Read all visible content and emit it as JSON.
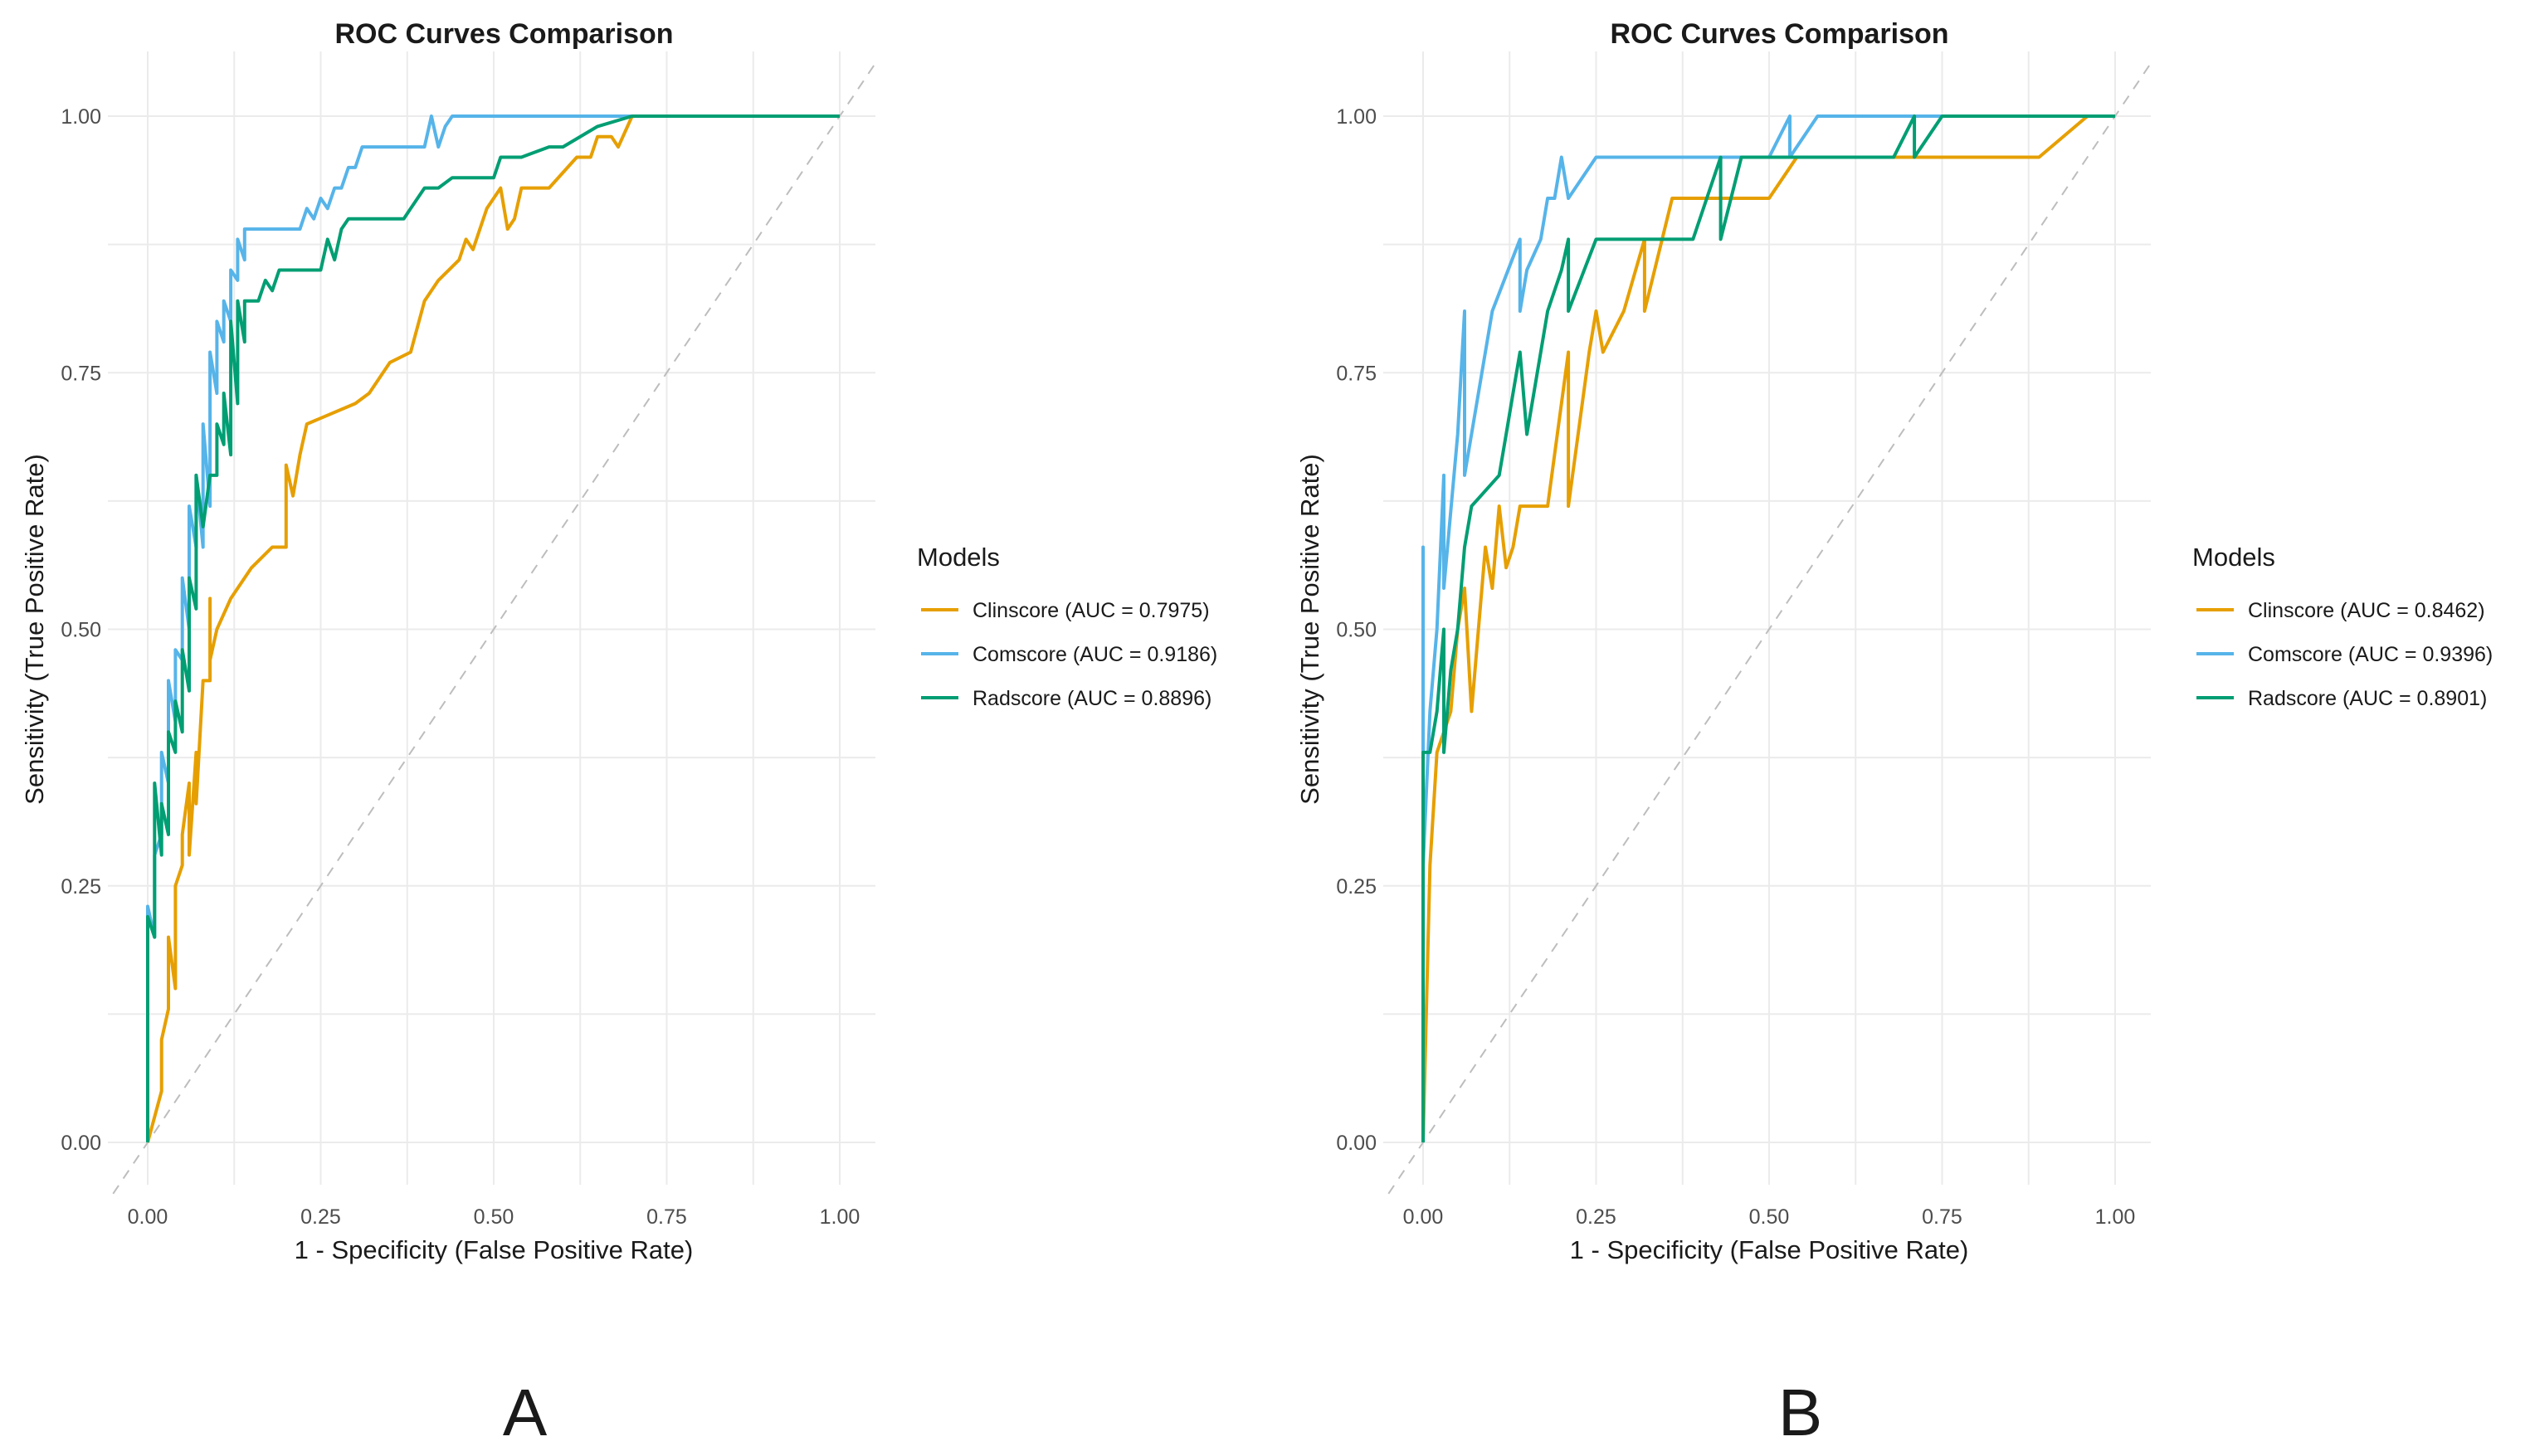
{
  "colors": {
    "Clinscore": "#E69F00",
    "Comscore": "#56B4E9",
    "Radscore": "#009E73",
    "diagonal": "#bdbdbd"
  },
  "chart_data": [
    {
      "panel_label": "A",
      "type": "line",
      "title": "ROC Curves Comparison",
      "xlabel": "1 - Specificity (False Positive Rate)",
      "ylabel": "Sensitivity (True Positive Rate)",
      "xlim": [
        0,
        1
      ],
      "ylim": [
        0,
        1
      ],
      "xticks": [
        "0.00",
        "0.25",
        "0.50",
        "0.75",
        "1.00"
      ],
      "yticks": [
        "0.00",
        "0.25",
        "0.50",
        "0.75",
        "1.00"
      ],
      "reference_line": "diagonal",
      "legend_title": "Models",
      "legend_position": "right",
      "series": [
        {
          "name": "Clinscore",
          "legend_label": "Clinscore (AUC = 0.7975)",
          "auc": 0.7975,
          "points": [
            [
              0,
              0
            ],
            [
              0.02,
              0.05
            ],
            [
              0.02,
              0.1
            ],
            [
              0.03,
              0.13
            ],
            [
              0.03,
              0.2
            ],
            [
              0.04,
              0.15
            ],
            [
              0.04,
              0.25
            ],
            [
              0.05,
              0.27
            ],
            [
              0.05,
              0.3
            ],
            [
              0.06,
              0.35
            ],
            [
              0.06,
              0.28
            ],
            [
              0.07,
              0.38
            ],
            [
              0.07,
              0.33
            ],
            [
              0.08,
              0.45
            ],
            [
              0.09,
              0.45
            ],
            [
              0.09,
              0.53
            ],
            [
              0.09,
              0.47
            ],
            [
              0.1,
              0.5
            ],
            [
              0.12,
              0.53
            ],
            [
              0.15,
              0.56
            ],
            [
              0.18,
              0.58
            ],
            [
              0.2,
              0.58
            ],
            [
              0.2,
              0.66
            ],
            [
              0.21,
              0.63
            ],
            [
              0.22,
              0.67
            ],
            [
              0.23,
              0.7
            ],
            [
              0.3,
              0.72
            ],
            [
              0.32,
              0.73
            ],
            [
              0.35,
              0.76
            ],
            [
              0.38,
              0.77
            ],
            [
              0.4,
              0.82
            ],
            [
              0.42,
              0.84
            ],
            [
              0.45,
              0.86
            ],
            [
              0.46,
              0.88
            ],
            [
              0.47,
              0.87
            ],
            [
              0.49,
              0.91
            ],
            [
              0.51,
              0.93
            ],
            [
              0.52,
              0.89
            ],
            [
              0.53,
              0.9
            ],
            [
              0.54,
              0.93
            ],
            [
              0.58,
              0.93
            ],
            [
              0.62,
              0.96
            ],
            [
              0.64,
              0.96
            ],
            [
              0.65,
              0.98
            ],
            [
              0.67,
              0.98
            ],
            [
              0.68,
              0.97
            ],
            [
              0.7,
              1.0
            ],
            [
              1.0,
              1.0
            ]
          ]
        },
        {
          "name": "Comscore",
          "legend_label": "Comscore (AUC = 0.9186)",
          "auc": 0.9186,
          "points": [
            [
              0,
              0
            ],
            [
              0,
              0.15
            ],
            [
              0,
              0.23
            ],
            [
              0.01,
              0.2
            ],
            [
              0.01,
              0.28
            ],
            [
              0.02,
              0.3
            ],
            [
              0.02,
              0.38
            ],
            [
              0.03,
              0.35
            ],
            [
              0.03,
              0.45
            ],
            [
              0.04,
              0.41
            ],
            [
              0.04,
              0.48
            ],
            [
              0.05,
              0.47
            ],
            [
              0.05,
              0.55
            ],
            [
              0.06,
              0.5
            ],
            [
              0.06,
              0.62
            ],
            [
              0.07,
              0.58
            ],
            [
              0.07,
              0.65
            ],
            [
              0.08,
              0.58
            ],
            [
              0.08,
              0.7
            ],
            [
              0.09,
              0.62
            ],
            [
              0.09,
              0.77
            ],
            [
              0.1,
              0.73
            ],
            [
              0.1,
              0.8
            ],
            [
              0.11,
              0.78
            ],
            [
              0.11,
              0.82
            ],
            [
              0.12,
              0.8
            ],
            [
              0.12,
              0.85
            ],
            [
              0.13,
              0.84
            ],
            [
              0.13,
              0.88
            ],
            [
              0.14,
              0.86
            ],
            [
              0.14,
              0.89
            ],
            [
              0.16,
              0.89
            ],
            [
              0.22,
              0.89
            ],
            [
              0.23,
              0.91
            ],
            [
              0.24,
              0.9
            ],
            [
              0.25,
              0.92
            ],
            [
              0.26,
              0.91
            ],
            [
              0.27,
              0.93
            ],
            [
              0.28,
              0.93
            ],
            [
              0.29,
              0.95
            ],
            [
              0.3,
              0.95
            ],
            [
              0.31,
              0.97
            ],
            [
              0.4,
              0.97
            ],
            [
              0.41,
              1.0
            ],
            [
              0.42,
              0.97
            ],
            [
              0.43,
              0.99
            ],
            [
              0.44,
              1.0
            ],
            [
              1.0,
              1.0
            ]
          ]
        },
        {
          "name": "Radscore",
          "legend_label": "Radscore (AUC = 0.8896)",
          "auc": 0.8896,
          "points": [
            [
              0,
              0
            ],
            [
              0,
              0.1
            ],
            [
              0,
              0.22
            ],
            [
              0.01,
              0.2
            ],
            [
              0.01,
              0.35
            ],
            [
              0.02,
              0.28
            ],
            [
              0.02,
              0.33
            ],
            [
              0.03,
              0.3
            ],
            [
              0.03,
              0.4
            ],
            [
              0.04,
              0.38
            ],
            [
              0.04,
              0.43
            ],
            [
              0.05,
              0.4
            ],
            [
              0.05,
              0.48
            ],
            [
              0.06,
              0.44
            ],
            [
              0.06,
              0.55
            ],
            [
              0.07,
              0.52
            ],
            [
              0.07,
              0.65
            ],
            [
              0.08,
              0.6
            ],
            [
              0.09,
              0.65
            ],
            [
              0.1,
              0.65
            ],
            [
              0.1,
              0.7
            ],
            [
              0.11,
              0.68
            ],
            [
              0.11,
              0.73
            ],
            [
              0.12,
              0.67
            ],
            [
              0.12,
              0.8
            ],
            [
              0.13,
              0.72
            ],
            [
              0.13,
              0.82
            ],
            [
              0.14,
              0.78
            ],
            [
              0.14,
              0.82
            ],
            [
              0.16,
              0.82
            ],
            [
              0.17,
              0.84
            ],
            [
              0.18,
              0.83
            ],
            [
              0.19,
              0.85
            ],
            [
              0.25,
              0.85
            ],
            [
              0.26,
              0.88
            ],
            [
              0.27,
              0.86
            ],
            [
              0.28,
              0.89
            ],
            [
              0.29,
              0.9
            ],
            [
              0.37,
              0.9
            ],
            [
              0.38,
              0.91
            ],
            [
              0.4,
              0.93
            ],
            [
              0.42,
              0.93
            ],
            [
              0.44,
              0.94
            ],
            [
              0.5,
              0.94
            ],
            [
              0.51,
              0.96
            ],
            [
              0.54,
              0.96
            ],
            [
              0.58,
              0.97
            ],
            [
              0.6,
              0.97
            ],
            [
              0.65,
              0.99
            ],
            [
              0.7,
              1.0
            ],
            [
              1.0,
              1.0
            ]
          ]
        }
      ]
    },
    {
      "panel_label": "B",
      "type": "line",
      "title": "ROC Curves Comparison",
      "xlabel": "1 - Specificity (False Positive Rate)",
      "ylabel": "Sensitivity (True Positive Rate)",
      "xlim": [
        0,
        1
      ],
      "ylim": [
        0,
        1
      ],
      "xticks": [
        "0.00",
        "0.25",
        "0.50",
        "0.75",
        "1.00"
      ],
      "yticks": [
        "0.00",
        "0.25",
        "0.50",
        "0.75",
        "1.00"
      ],
      "reference_line": "diagonal",
      "legend_title": "Models",
      "legend_position": "right",
      "series": [
        {
          "name": "Clinscore",
          "legend_label": "Clinscore (AUC = 0.8462)",
          "auc": 0.8462,
          "points": [
            [
              0,
              0
            ],
            [
              0.01,
              0.27
            ],
            [
              0.02,
              0.38
            ],
            [
              0.04,
              0.42
            ],
            [
              0.05,
              0.5
            ],
            [
              0.06,
              0.54
            ],
            [
              0.07,
              0.42
            ],
            [
              0.08,
              0.5
            ],
            [
              0.09,
              0.58
            ],
            [
              0.1,
              0.54
            ],
            [
              0.11,
              0.62
            ],
            [
              0.12,
              0.56
            ],
            [
              0.13,
              0.58
            ],
            [
              0.14,
              0.62
            ],
            [
              0.18,
              0.62
            ],
            [
              0.21,
              0.77
            ],
            [
              0.21,
              0.62
            ],
            [
              0.24,
              0.77
            ],
            [
              0.25,
              0.81
            ],
            [
              0.26,
              0.77
            ],
            [
              0.29,
              0.81
            ],
            [
              0.32,
              0.88
            ],
            [
              0.32,
              0.81
            ],
            [
              0.36,
              0.92
            ],
            [
              0.5,
              0.92
            ],
            [
              0.54,
              0.96
            ],
            [
              0.89,
              0.96
            ],
            [
              0.96,
              1.0
            ],
            [
              1.0,
              1.0
            ]
          ]
        },
        {
          "name": "Comscore",
          "legend_label": "Comscore (AUC = 0.9396)",
          "auc": 0.9396,
          "points": [
            [
              0,
              0
            ],
            [
              0,
              0.58
            ],
            [
              0,
              0.27
            ],
            [
              0.01,
              0.42
            ],
            [
              0.02,
              0.5
            ],
            [
              0.03,
              0.65
            ],
            [
              0.03,
              0.54
            ],
            [
              0.05,
              0.69
            ],
            [
              0.06,
              0.81
            ],
            [
              0.06,
              0.65
            ],
            [
              0.08,
              0.73
            ],
            [
              0.1,
              0.81
            ],
            [
              0.14,
              0.88
            ],
            [
              0.14,
              0.81
            ],
            [
              0.15,
              0.85
            ],
            [
              0.17,
              0.88
            ],
            [
              0.18,
              0.92
            ],
            [
              0.19,
              0.92
            ],
            [
              0.2,
              0.96
            ],
            [
              0.21,
              0.92
            ],
            [
              0.25,
              0.96
            ],
            [
              0.5,
              0.96
            ],
            [
              0.53,
              1.0
            ],
            [
              0.53,
              0.96
            ],
            [
              0.57,
              1.0
            ],
            [
              1.0,
              1.0
            ]
          ]
        },
        {
          "name": "Radscore",
          "legend_label": "Radscore (AUC = 0.8901)",
          "auc": 0.8901,
          "points": [
            [
              0,
              0
            ],
            [
              0,
              0.38
            ],
            [
              0.01,
              0.38
            ],
            [
              0.02,
              0.42
            ],
            [
              0.03,
              0.5
            ],
            [
              0.03,
              0.38
            ],
            [
              0.04,
              0.46
            ],
            [
              0.05,
              0.5
            ],
            [
              0.06,
              0.58
            ],
            [
              0.07,
              0.62
            ],
            [
              0.11,
              0.65
            ],
            [
              0.12,
              0.69
            ],
            [
              0.13,
              0.73
            ],
            [
              0.14,
              0.77
            ],
            [
              0.15,
              0.69
            ],
            [
              0.17,
              0.77
            ],
            [
              0.18,
              0.81
            ],
            [
              0.2,
              0.85
            ],
            [
              0.21,
              0.88
            ],
            [
              0.21,
              0.81
            ],
            [
              0.25,
              0.88
            ],
            [
              0.39,
              0.88
            ],
            [
              0.43,
              0.96
            ],
            [
              0.43,
              0.88
            ],
            [
              0.46,
              0.96
            ],
            [
              0.68,
              0.96
            ],
            [
              0.71,
              1.0
            ],
            [
              0.71,
              0.96
            ],
            [
              0.75,
              1.0
            ],
            [
              1.0,
              1.0
            ]
          ]
        }
      ]
    }
  ]
}
